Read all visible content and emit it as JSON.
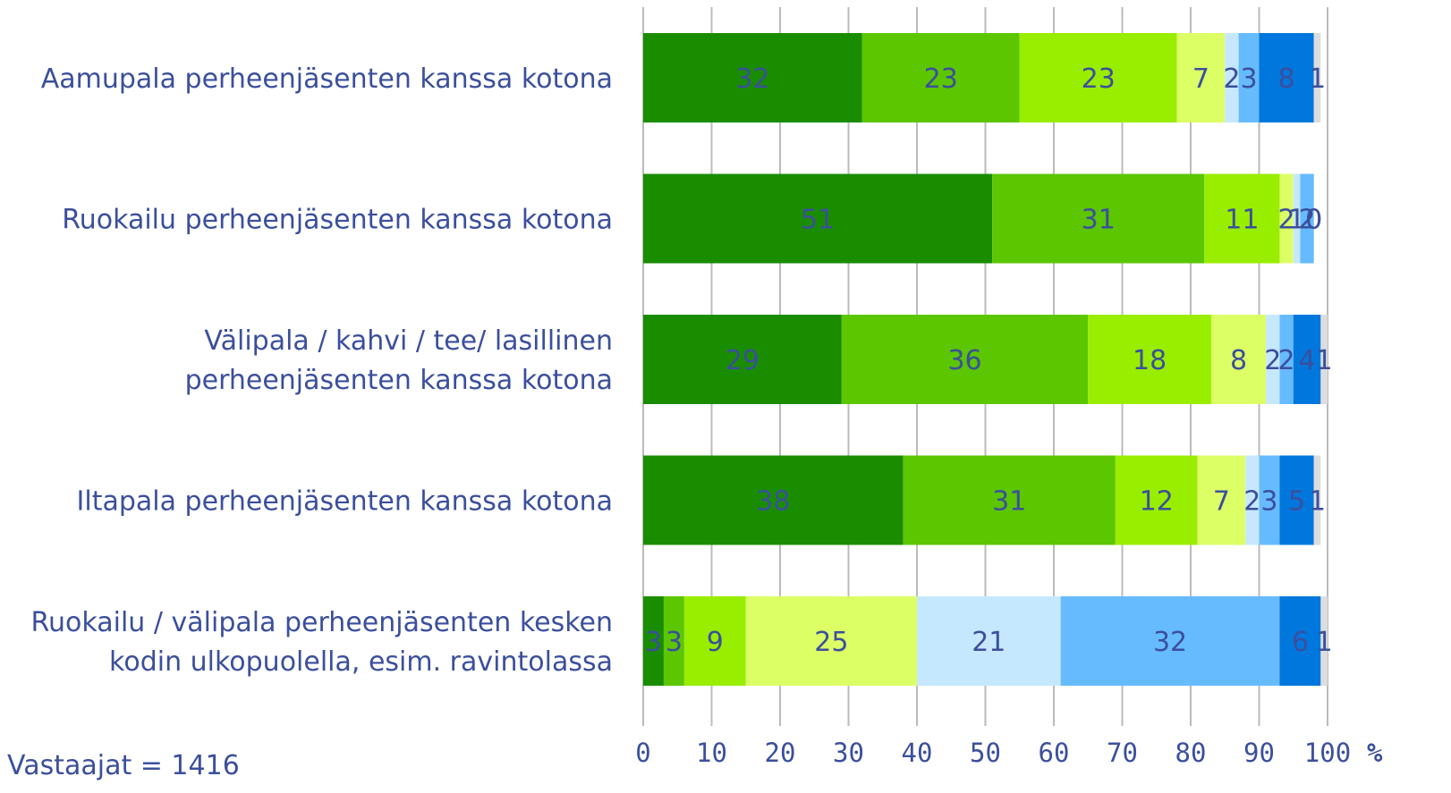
{
  "chart_data": {
    "type": "stacked-bar-horizontal",
    "categories": [
      [
        "Aamupala perheenjäsenten kanssa kotona"
      ],
      [
        "Ruokailu perheenjäsenten kanssa kotona"
      ],
      [
        "Välipala / kahvi / tee/ lasillinen",
        "perheenjäsenten kanssa kotona"
      ],
      [
        "Iltapala perheenjäsenten kanssa kotona"
      ],
      [
        "Ruokailu / välipala perheenjäsenten kesken",
        "kodin ulkopuolella, esim. ravintolassa"
      ]
    ],
    "series": [
      {
        "color": "#1a8c00",
        "values": [
          32,
          51,
          29,
          38,
          3
        ]
      },
      {
        "color": "#5cc600",
        "values": [
          23,
          31,
          36,
          31,
          3
        ]
      },
      {
        "color": "#99ee00",
        "values": [
          23,
          11,
          18,
          12,
          9
        ]
      },
      {
        "color": "#ddff66",
        "values": [
          7,
          2,
          8,
          7,
          25
        ]
      },
      {
        "color": "#c6e8ff",
        "values": [
          2,
          1,
          2,
          2,
          21
        ]
      },
      {
        "color": "#66bbff",
        "values": [
          3,
          2,
          2,
          3,
          32
        ]
      },
      {
        "color": "#0077dd",
        "values": [
          8,
          0,
          4,
          5,
          6
        ]
      },
      {
        "color": "#dddddd",
        "values": [
          1,
          0,
          1,
          1,
          1
        ]
      }
    ],
    "xlim": [
      0,
      100
    ],
    "xticks": [
      0,
      10,
      20,
      30,
      40,
      50,
      60,
      70,
      80,
      90,
      100
    ],
    "x_label": "%",
    "grid": true,
    "footnote": "Vastaajat = 1416"
  }
}
